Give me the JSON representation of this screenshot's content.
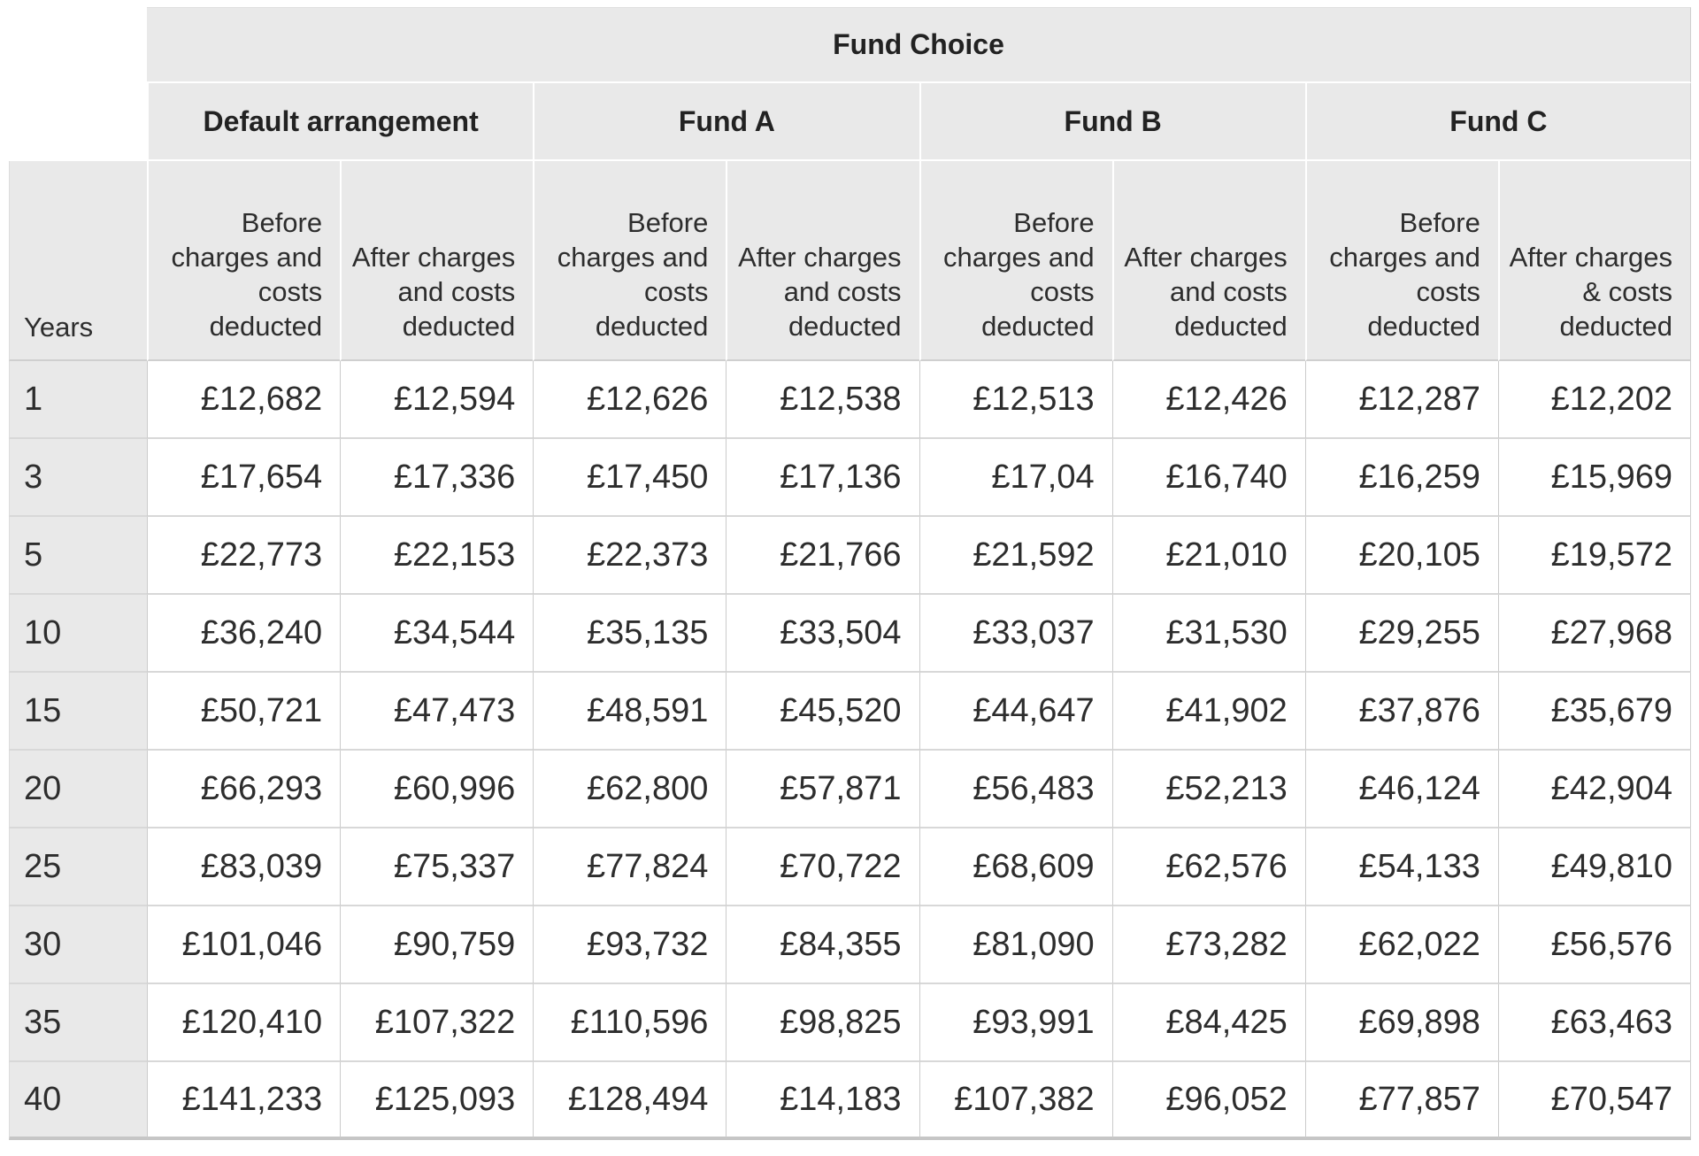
{
  "colors": {
    "header_bg": "#e9e9e9",
    "cell_bg": "#ffffff",
    "grid_line": "#cbcbcb",
    "row_separator": "#d8d8d8",
    "text": "#2d2d2d"
  },
  "table": {
    "title": "Fund Choice",
    "years_label": "Years",
    "groups": [
      {
        "label": "Default arrangement"
      },
      {
        "label": "Fund A"
      },
      {
        "label": "Fund B"
      },
      {
        "label": "Fund C"
      }
    ],
    "sub_headers": [
      "Before charges and costs deducted",
      "After charges and costs deducted",
      "Before charges and costs deducted",
      "After charges and costs deducted",
      "Before charges and costs deducted",
      "After charges and costs deducted",
      "Before charges and costs deducted",
      "After charges & costs deducted"
    ],
    "rows": [
      {
        "years": "1",
        "values": [
          "£12,682",
          "£12,594",
          "£12,626",
          "£12,538",
          "£12,513",
          "£12,426",
          "£12,287",
          "£12,202"
        ]
      },
      {
        "years": "3",
        "values": [
          "£17,654",
          "£17,336",
          "£17,450",
          "£17,136",
          "£17,04",
          "£16,740",
          "£16,259",
          "£15,969"
        ]
      },
      {
        "years": "5",
        "values": [
          "£22,773",
          "£22,153",
          "£22,373",
          "£21,766",
          "£21,592",
          "£21,010",
          "£20,105",
          "£19,572"
        ]
      },
      {
        "years": "10",
        "values": [
          "£36,240",
          "£34,544",
          "£35,135",
          "£33,504",
          "£33,037",
          "£31,530",
          "£29,255",
          "£27,968"
        ]
      },
      {
        "years": "15",
        "values": [
          "£50,721",
          "£47,473",
          "£48,591",
          "£45,520",
          "£44,647",
          "£41,902",
          "£37,876",
          "£35,679"
        ]
      },
      {
        "years": "20",
        "values": [
          "£66,293",
          "£60,996",
          "£62,800",
          "£57,871",
          "£56,483",
          "£52,213",
          "£46,124",
          "£42,904"
        ]
      },
      {
        "years": "25",
        "values": [
          "£83,039",
          "£75,337",
          "£77,824",
          "£70,722",
          "£68,609",
          "£62,576",
          "£54,133",
          "£49,810"
        ]
      },
      {
        "years": "30",
        "values": [
          "£101,046",
          "£90,759",
          "£93,732",
          "£84,355",
          "£81,090",
          "£73,282",
          "£62,022",
          "£56,576"
        ]
      },
      {
        "years": "35",
        "values": [
          "£120,410",
          "£107,322",
          "£110,596",
          "£98,825",
          "£93,991",
          "£84,425",
          "£69,898",
          "£63,463"
        ]
      },
      {
        "years": "40",
        "values": [
          "£141,233",
          "£125,093",
          "£128,494",
          "£14,183",
          "£107,382",
          "£96,052",
          "£77,857",
          "£70,547"
        ]
      }
    ]
  },
  "chart_data": {
    "type": "table",
    "title": "Fund Choice",
    "row_axis_label": "Years",
    "column_groups": [
      "Default arrangement",
      "Fund A",
      "Fund B",
      "Fund C"
    ],
    "columns": [
      "Years",
      "Default arrangement - Before charges and costs deducted",
      "Default arrangement - After charges and costs deducted",
      "Fund A - Before charges and costs deducted",
      "Fund A - After charges and costs deducted",
      "Fund B - Before charges and costs deducted",
      "Fund B - After charges and costs deducted",
      "Fund C - Before charges and costs deducted",
      "Fund C - After charges & costs deducted"
    ],
    "rows": [
      [
        "1",
        "£12,682",
        "£12,594",
        "£12,626",
        "£12,538",
        "£12,513",
        "£12,426",
        "£12,287",
        "£12,202"
      ],
      [
        "3",
        "£17,654",
        "£17,336",
        "£17,450",
        "£17,136",
        "£17,04",
        "£16,740",
        "£16,259",
        "£15,969"
      ],
      [
        "5",
        "£22,773",
        "£22,153",
        "£22,373",
        "£21,766",
        "£21,592",
        "£21,010",
        "£20,105",
        "£19,572"
      ],
      [
        "10",
        "£36,240",
        "£34,544",
        "£35,135",
        "£33,504",
        "£33,037",
        "£31,530",
        "£29,255",
        "£27,968"
      ],
      [
        "15",
        "£50,721",
        "£47,473",
        "£48,591",
        "£45,520",
        "£44,647",
        "£41,902",
        "£37,876",
        "£35,679"
      ],
      [
        "20",
        "£66,293",
        "£60,996",
        "£62,800",
        "£57,871",
        "£56,483",
        "£52,213",
        "£46,124",
        "£42,904"
      ],
      [
        "25",
        "£83,039",
        "£75,337",
        "£77,824",
        "£70,722",
        "£68,609",
        "£62,576",
        "£54,133",
        "£49,810"
      ],
      [
        "30",
        "£101,046",
        "£90,759",
        "£93,732",
        "£84,355",
        "£81,090",
        "£73,282",
        "£62,022",
        "£56,576"
      ],
      [
        "35",
        "£120,410",
        "£107,322",
        "£110,596",
        "£98,825",
        "£93,991",
        "£84,425",
        "£69,898",
        "£63,463"
      ],
      [
        "40",
        "£141,233",
        "£125,093",
        "£128,494",
        "£14,183",
        "£107,382",
        "£96,052",
        "£77,857",
        "£70,547"
      ]
    ]
  }
}
